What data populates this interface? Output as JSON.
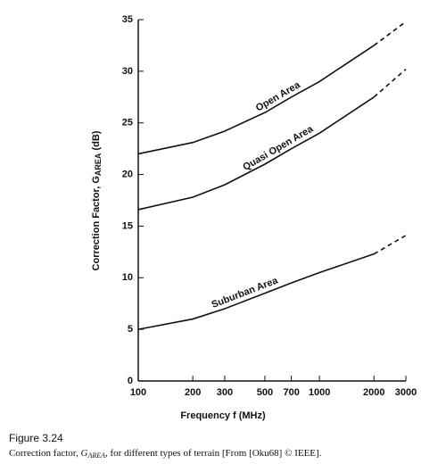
{
  "chart_data": {
    "type": "line",
    "x_label": "Frequency  f  (MHz)",
    "y_label": "Correction Factor, G",
    "y_label_subscript": "AREA",
    "y_label_suffix": " (dB)",
    "x": [
      100,
      200,
      300,
      500,
      700,
      1000,
      2000,
      3000
    ],
    "xscale": "log",
    "xlim": [
      100,
      3000
    ],
    "xticks": [
      100,
      200,
      300,
      500,
      700,
      1000,
      2000,
      3000
    ],
    "ylim": [
      0,
      35
    ],
    "yticks": [
      0,
      5,
      10,
      15,
      20,
      25,
      30,
      35
    ],
    "grid": false,
    "extrapolated_from": 2000,
    "series": [
      {
        "name": "Open Area",
        "color": "#111111",
        "values": [
          22,
          23.1,
          24.2,
          26,
          27.5,
          29,
          32.5,
          34.8
        ]
      },
      {
        "name": "Quasi  Open Area",
        "color": "#111111",
        "values": [
          16.6,
          17.8,
          19,
          21,
          22.5,
          24,
          27.5,
          30.2
        ]
      },
      {
        "name": "Suburban Area",
        "color": "#111111",
        "values": [
          5,
          6,
          7,
          8.5,
          9.5,
          10.5,
          12.3,
          14.1
        ]
      }
    ]
  },
  "caption": {
    "figure": "Figure 3.24",
    "prefix": "Correction factor, ",
    "symbol": "G",
    "subscript": "AREA",
    "suffix": ", for different types of terrain [From [Oku68] © IEEE]."
  }
}
